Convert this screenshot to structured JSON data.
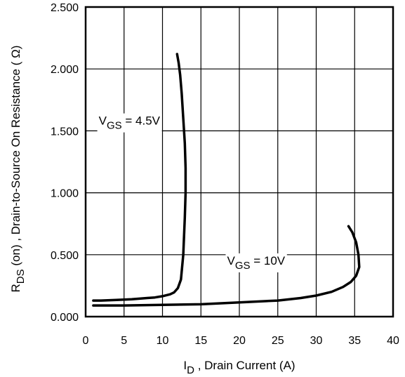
{
  "chart_data": {
    "type": "line",
    "title": "",
    "xlabel": {
      "main": "I",
      "sub": "D",
      "rest": " , Drain Current (A)"
    },
    "ylabel": {
      "main": "R",
      "sub": "DS",
      "rest": " (on) , Drain-to-Source On Resistance ( Ω)"
    },
    "xlim": [
      0,
      40
    ],
    "ylim": [
      0,
      2.5
    ],
    "x_ticks": [
      "0",
      "5",
      "10",
      "15",
      "20",
      "25",
      "30",
      "35",
      "40"
    ],
    "x_tick_values": [
      0,
      5,
      10,
      15,
      20,
      25,
      30,
      35,
      40
    ],
    "y_ticks": [
      "0.000",
      "0.500",
      "1.000",
      "1.500",
      "2.000",
      "2.500"
    ],
    "y_tick_values": [
      0,
      0.5,
      1.0,
      1.5,
      2.0,
      2.5
    ],
    "grid": true,
    "legend": "none",
    "series": [
      {
        "name": "VGS = 4.5V",
        "color": "#000000",
        "x": [
          1,
          2,
          4,
          6,
          8,
          9,
          10,
          11,
          11.5,
          12,
          12.4,
          12.7,
          12.9,
          13.0,
          13.0,
          12.9,
          12.7,
          12.5,
          12.3,
          12.1,
          11.9
        ],
        "y": [
          0.13,
          0.13,
          0.135,
          0.14,
          0.15,
          0.155,
          0.165,
          0.18,
          0.195,
          0.23,
          0.3,
          0.5,
          0.8,
          1.0,
          1.2,
          1.4,
          1.6,
          1.8,
          1.95,
          2.05,
          2.12
        ]
      },
      {
        "name": "VGS = 10V",
        "color": "#000000",
        "x": [
          1,
          3,
          5,
          10,
          15,
          20,
          25,
          28,
          30,
          32,
          33.5,
          34.5,
          35.2,
          35.6,
          35.5,
          35.2,
          34.7,
          34.2
        ],
        "y": [
          0.09,
          0.09,
          0.09,
          0.095,
          0.1,
          0.115,
          0.13,
          0.15,
          0.17,
          0.2,
          0.24,
          0.28,
          0.33,
          0.4,
          0.5,
          0.6,
          0.68,
          0.73
        ]
      }
    ],
    "annotations": [
      {
        "label_main": "V",
        "label_sub": "GS",
        "label_rest": " = 4.5V",
        "x": 1.7,
        "y": 1.55
      },
      {
        "label_main": "V",
        "label_sub": "GS",
        "label_rest": " = 10V",
        "x": 18.4,
        "y": 0.42
      }
    ]
  }
}
